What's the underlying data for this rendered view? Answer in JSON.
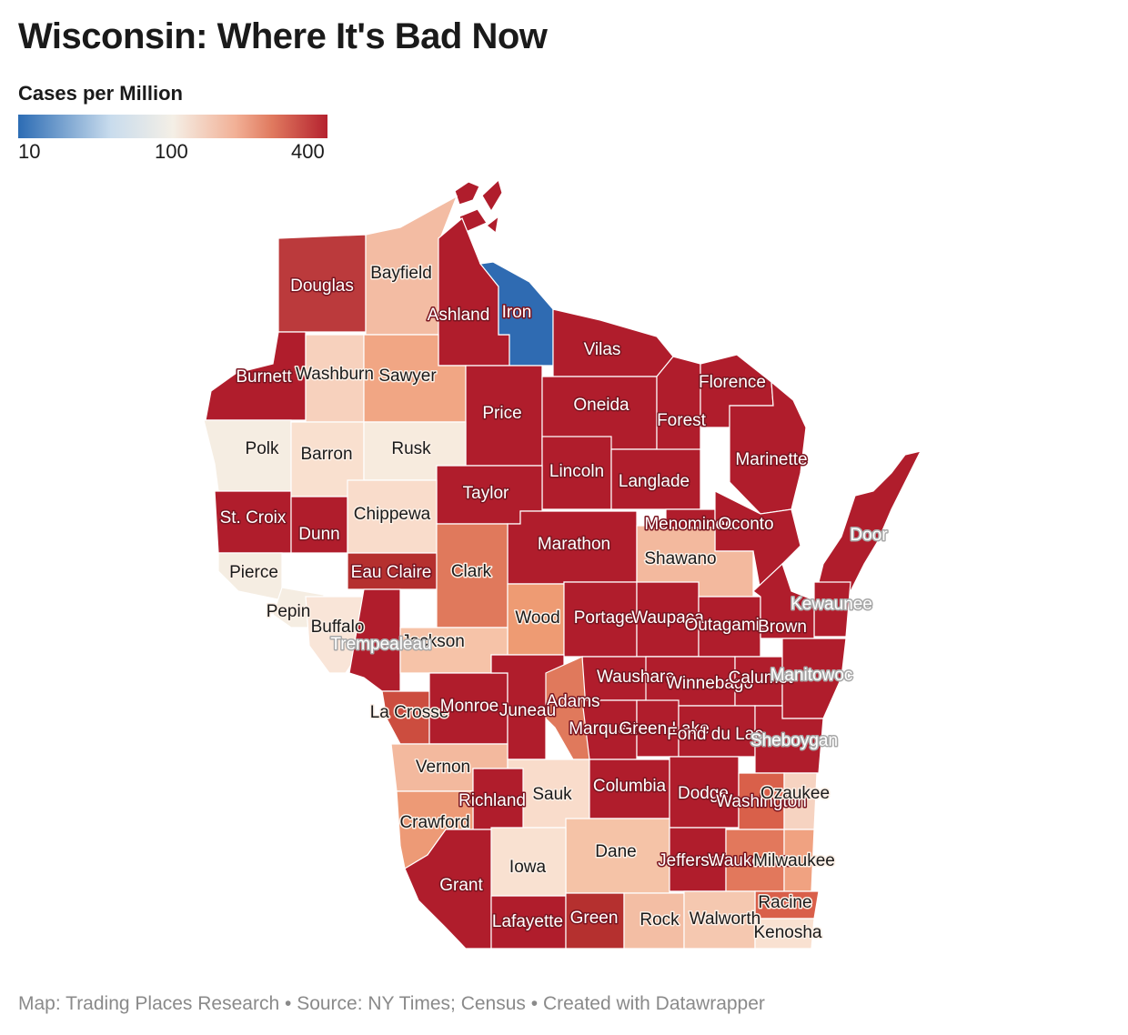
{
  "title": "Wisconsin: Where It's Bad Now",
  "legend": {
    "title": "Cases per Million",
    "ticks": [
      "10",
      "100",
      "400"
    ],
    "colors": {
      "low": "#2c6cb4",
      "mid": "#f4efe6",
      "high": "#b5222f"
    }
  },
  "footer": {
    "map": "Map: Trading Places Research",
    "source": "Source: NY Times; Census",
    "created": "Created with Datawrapper",
    "separator": "•"
  },
  "counties": [
    {
      "name": "Douglas"
    },
    {
      "name": "Bayfield"
    },
    {
      "name": "Ashland"
    },
    {
      "name": "Iron"
    },
    {
      "name": "Vilas"
    },
    {
      "name": "Burnett"
    },
    {
      "name": "Washburn"
    },
    {
      "name": "Sawyer"
    },
    {
      "name": "Price"
    },
    {
      "name": "Oneida"
    },
    {
      "name": "Forest"
    },
    {
      "name": "Florence"
    },
    {
      "name": "Polk"
    },
    {
      "name": "Barron"
    },
    {
      "name": "Rusk"
    },
    {
      "name": "Marinette"
    },
    {
      "name": "Lincoln"
    },
    {
      "name": "Langlade"
    },
    {
      "name": "Taylor"
    },
    {
      "name": "St. Croix"
    },
    {
      "name": "Dunn"
    },
    {
      "name": "Chippewa"
    },
    {
      "name": "Menominee"
    },
    {
      "name": "Oconto"
    },
    {
      "name": "Door"
    },
    {
      "name": "Marathon"
    },
    {
      "name": "Shawano"
    },
    {
      "name": "Pierce"
    },
    {
      "name": "Eau Claire"
    },
    {
      "name": "Clark"
    },
    {
      "name": "Kewaunee"
    },
    {
      "name": "Pepin"
    },
    {
      "name": "Wood"
    },
    {
      "name": "Portage"
    },
    {
      "name": "Waupaca"
    },
    {
      "name": "Outagamie"
    },
    {
      "name": "Brown"
    },
    {
      "name": "Buffalo"
    },
    {
      "name": "Jackson"
    },
    {
      "name": "Trempealeau"
    },
    {
      "name": "Waushara"
    },
    {
      "name": "Winnebago"
    },
    {
      "name": "Calumet"
    },
    {
      "name": "Manitowoc"
    },
    {
      "name": "Adams"
    },
    {
      "name": "La Crosse"
    },
    {
      "name": "Monroe"
    },
    {
      "name": "Juneau"
    },
    {
      "name": "Marquette"
    },
    {
      "name": "Green Lake"
    },
    {
      "name": "Fond du Lac"
    },
    {
      "name": "Sheboygan"
    },
    {
      "name": "Vernon"
    },
    {
      "name": "Sauk"
    },
    {
      "name": "Columbia"
    },
    {
      "name": "Dodge"
    },
    {
      "name": "Washington"
    },
    {
      "name": "Ozaukee"
    },
    {
      "name": "Richland"
    },
    {
      "name": "Crawford"
    },
    {
      "name": "Dane"
    },
    {
      "name": "Jefferson"
    },
    {
      "name": "Waukesha"
    },
    {
      "name": "Milwaukee"
    },
    {
      "name": "Iowa"
    },
    {
      "name": "Grant"
    },
    {
      "name": "Racine"
    },
    {
      "name": "Lafayette"
    },
    {
      "name": "Green"
    },
    {
      "name": "Rock"
    },
    {
      "name": "Walworth"
    },
    {
      "name": "Kenosha"
    }
  ]
}
